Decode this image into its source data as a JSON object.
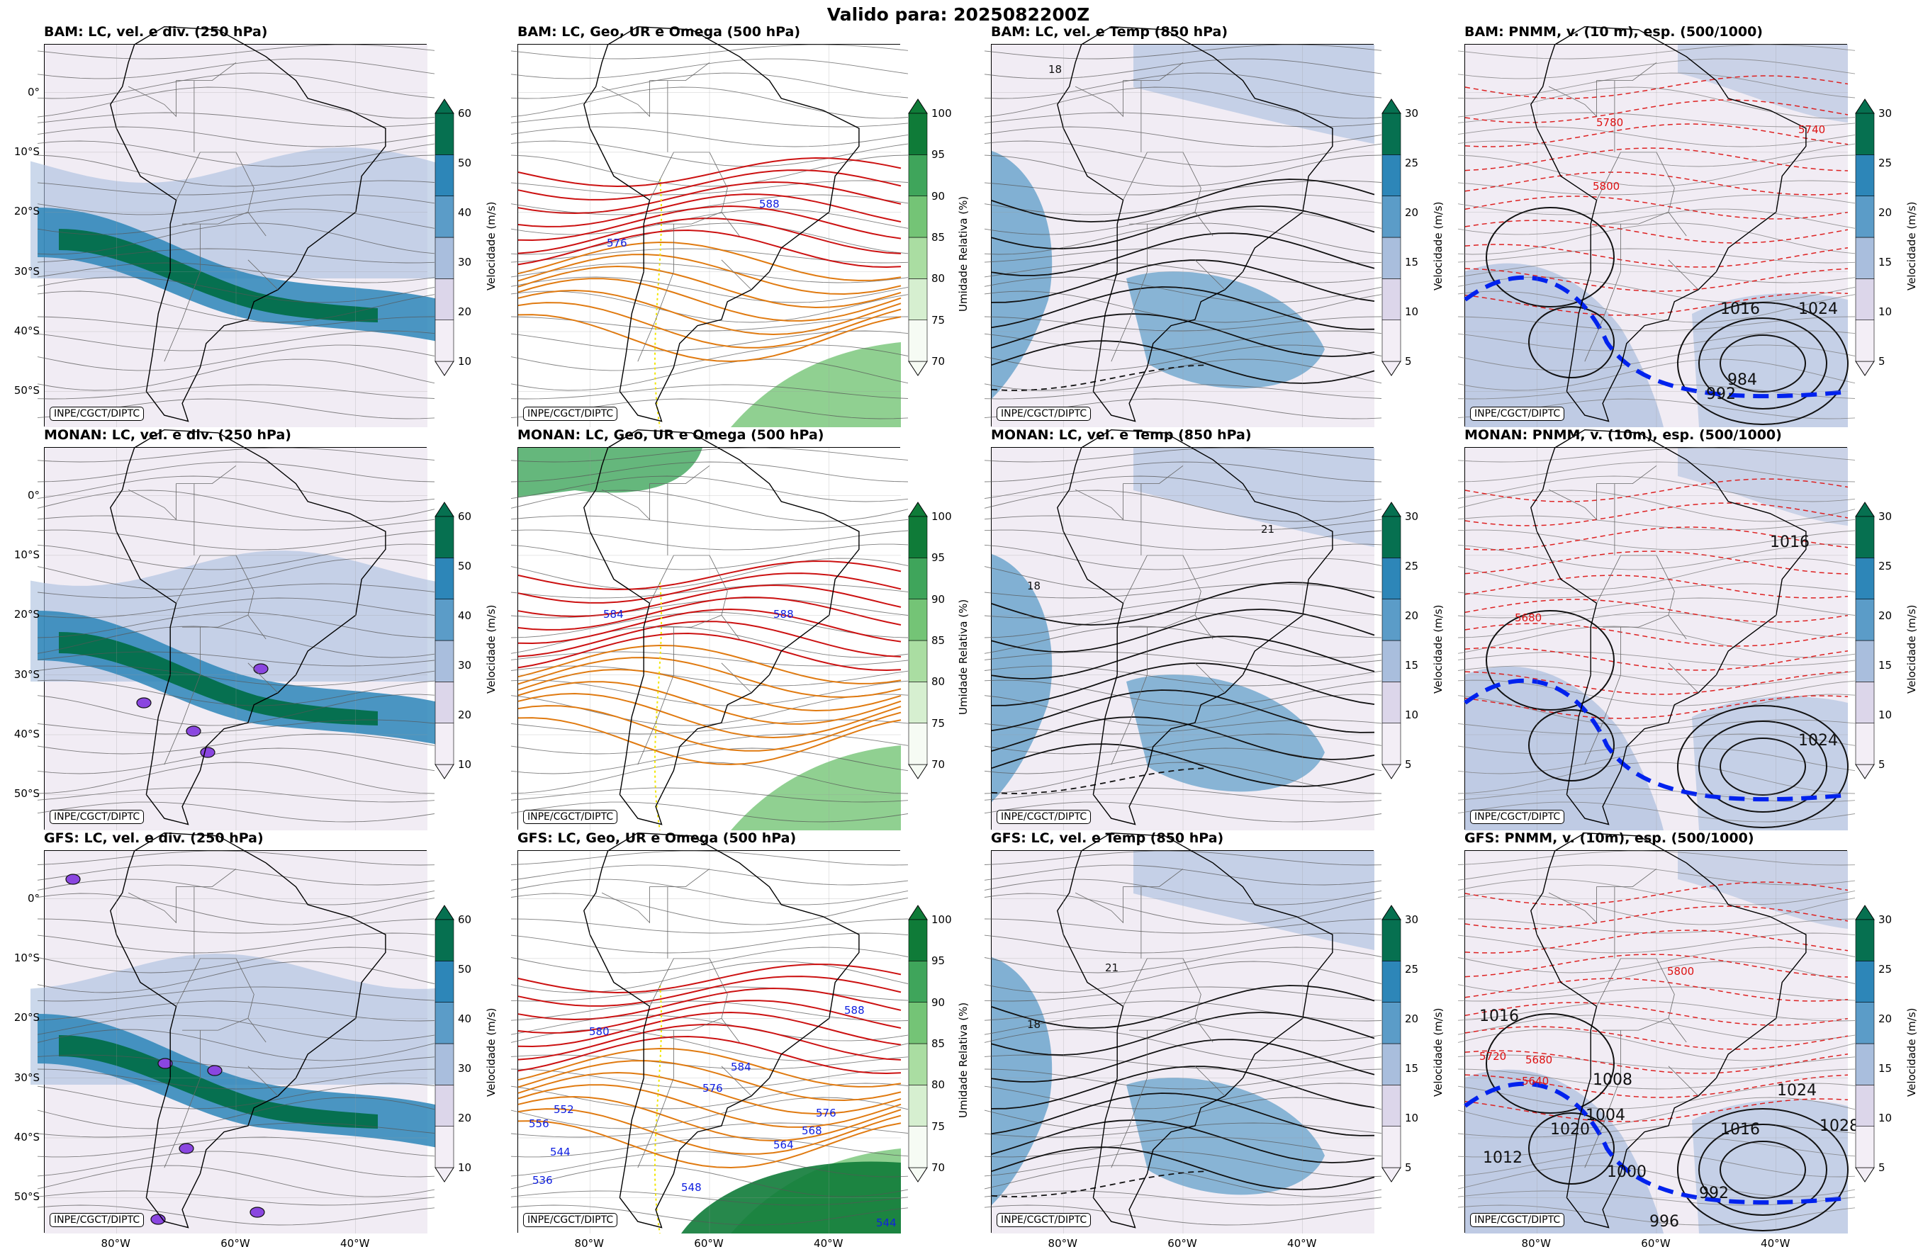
{
  "figure": {
    "suptitle": "Valido para: 2025082200Z",
    "credit": "INPE/CGCT/DIPTC"
  },
  "axes": {
    "y_ticks": [
      "0°",
      "10°S",
      "20°S",
      "30°S",
      "40°S",
      "50°S"
    ],
    "x_ticks": [
      "80°W",
      "60°W",
      "40°W"
    ]
  },
  "colorbars": {
    "wind250": {
      "label": "Velocidade (m/s)",
      "ticks": [
        "10",
        "20",
        "30",
        "40",
        "50",
        "60"
      ],
      "colors": [
        "#f3eef6",
        "#dcd6ea",
        "#a9bedd",
        "#5b9cc8",
        "#2d86b8",
        "#067050"
      ]
    },
    "rh500": {
      "label": "Umidade Relativa (%)",
      "ticks": [
        "70",
        "75",
        "80",
        "85",
        "90",
        "95",
        "100"
      ],
      "colors": [
        "#f6fbf4",
        "#d6efd0",
        "#aadda2",
        "#74c476",
        "#3fa55b",
        "#0f7b38"
      ]
    },
    "wind850": {
      "label": "Velocidade (m/s)",
      "ticks": [
        "5",
        "10",
        "15",
        "20",
        "25",
        "30"
      ],
      "colors": [
        "#f3eef6",
        "#dcd6ea",
        "#a9bedd",
        "#5b9cc8",
        "#2d86b8",
        "#067050"
      ]
    },
    "pnmm": {
      "label": "Velocidade (m/s)",
      "ticks": [
        "5",
        "10",
        "15",
        "20",
        "25",
        "30"
      ],
      "colors": [
        "#f3eef6",
        "#dcd6ea",
        "#a9bedd",
        "#5b9cc8",
        "#2d86b8",
        "#067050"
      ]
    }
  },
  "rows": [
    {
      "model": "BAM",
      "titles": [
        "BAM: LC, vel. e div. (250 hPa)",
        "BAM: LC, Geo, UR e Omega (500 hPa)",
        "BAM: LC, vel. e Temp (850 hPa)",
        "BAM: PNMM, v. (10 m), esp. (500/1000)"
      ]
    },
    {
      "model": "MONAN",
      "titles": [
        "MONAN: LC, vel. e div. (250 hPa)",
        "MONAN: LC, Geo, UR e Omega (500 hPa)",
        "MONAN: LC, vel. e Temp (850 hPa)",
        "MONAN: PNMM, v. (10m), esp. (500/1000)"
      ]
    },
    {
      "model": "GFS",
      "titles": [
        "GFS: LC, vel. e div. (250 hPa)",
        "GFS: LC, Geo, UR e Omega (500 hPa)",
        "GFS: LC, vel. e Temp (850 hPa)",
        "GFS: PNMM, v. (10m), esp. (500/1000)"
      ]
    }
  ],
  "contour_labels": {
    "geo500": [
      [
        "576",
        "588"
      ],
      [
        "584",
        "588"
      ],
      [
        "580",
        "588",
        "584",
        "576",
        "564",
        "568",
        "576",
        "556",
        "552",
        "544",
        "548",
        "536",
        "544"
      ]
    ],
    "temp850": [
      [
        "18"
      ],
      [
        "18",
        "21"
      ],
      [
        "18",
        "21"
      ]
    ],
    "pnmm": [
      [
        "5780",
        "5740",
        "5800",
        "1016",
        "1024",
        "984",
        "992"
      ],
      [
        "1016",
        "5680",
        "1024"
      ],
      [
        "1016",
        "5720",
        "5680",
        "5640",
        "5800",
        "1024",
        "1028",
        "1012",
        "1020",
        "1016",
        "992",
        "996",
        "1000",
        "1008",
        "1004"
      ]
    ]
  },
  "chart_data": [
    {
      "type": "heatmap",
      "title": "Valido para: 2025082200Z",
      "xlabel": "",
      "ylabel": "",
      "xlim": [
        -92,
        -28
      ],
      "ylim": [
        -56,
        8
      ],
      "grid": true,
      "legend": "none"
    }
  ]
}
